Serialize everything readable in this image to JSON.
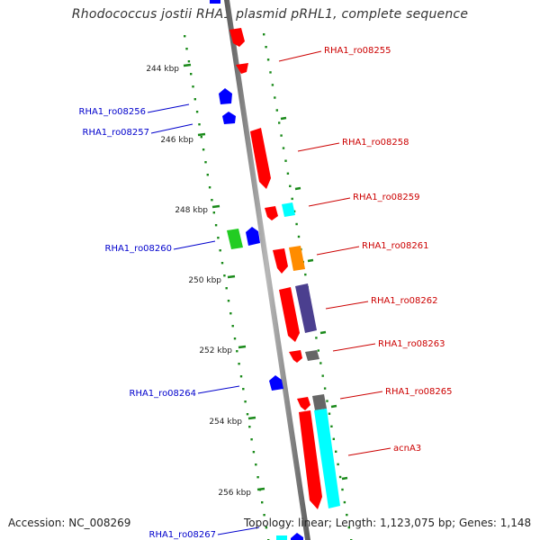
{
  "title": "Rhodococcus jostii RHA1 plasmid pRHL1, complete sequence",
  "footer": {
    "accession": "Accession: NC_008269",
    "summary": "Topology: linear; Length: 1,123,075 bp; Genes: 1,148"
  },
  "kbp_ticks": [
    "244 kbp",
    "246 kbp",
    "248 kbp",
    "250 kbp",
    "252 kbp",
    "254 kbp",
    "256 kbp"
  ],
  "genes": {
    "right": [
      "RHA1_ro08255",
      "RHA1_ro08258",
      "RHA1_ro08259",
      "RHA1_ro08261",
      "RHA1_ro08262",
      "RHA1_ro08263",
      "RHA1_ro08265",
      "acnA3"
    ],
    "left": [
      "RHA1_ro08256",
      "RHA1_ro08257",
      "RHA1_ro08260",
      "RHA1_ro08264",
      "RHA1_ro08267"
    ]
  },
  "colors": {
    "forward_label": "#cc0000",
    "reverse_label": "#0000cc",
    "backbone": "#8c8c8c",
    "scale_dots": "#1a8a1a",
    "red_gene": "#ff0000",
    "blue_gene": "#0000ff",
    "cyan_gene": "#00ffff",
    "orange_gene": "#ff8c00",
    "purple_gene": "#4b3f8f",
    "gray_gene": "#666666",
    "green_gene": "#22cc22"
  }
}
